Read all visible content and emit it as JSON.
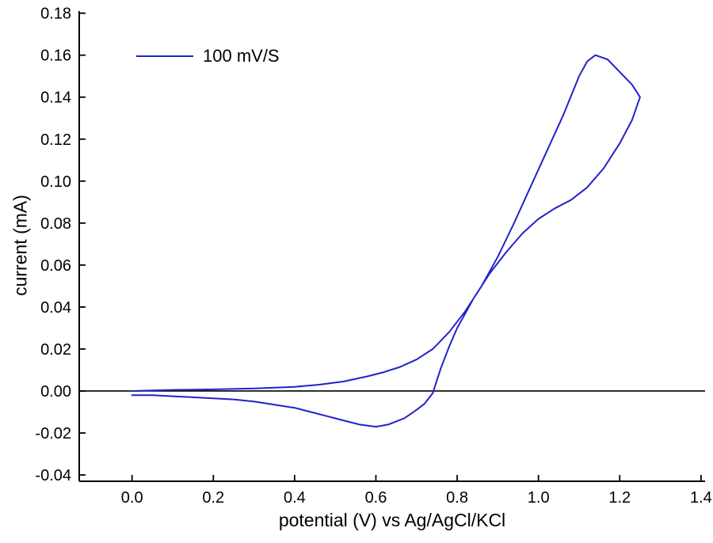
{
  "chart_data": {
    "type": "line",
    "title": "",
    "xlabel": "potential (V) vs Ag/AgCl/KCl",
    "ylabel": "current (mA)",
    "xlim": [
      -0.13,
      1.41
    ],
    "ylim": [
      -0.043,
      0.181
    ],
    "grid": false,
    "legend_position": "top-left-inside",
    "axis_color": "#000000",
    "zero_line": {
      "y": 0,
      "color": "#000000"
    },
    "x_ticks": {
      "values": [
        0.0,
        0.2,
        0.4,
        0.6,
        0.8,
        1.0,
        1.2,
        1.4
      ],
      "labels": [
        "0.0",
        "0.2",
        "0.4",
        "0.6",
        "0.8",
        "1.0",
        "1.2",
        "1.4"
      ]
    },
    "y_ticks": {
      "values": [
        -0.04,
        -0.02,
        0.0,
        0.02,
        0.04,
        0.06,
        0.08,
        0.1,
        0.12,
        0.14,
        0.16,
        0.18
      ],
      "labels": [
        "-0.04",
        "-0.02",
        "0.00",
        "0.02",
        "0.04",
        "0.06",
        "0.08",
        "0.10",
        "0.12",
        "0.14",
        "0.16",
        "0.18"
      ]
    },
    "series": [
      {
        "name": "100 mV/S",
        "color": "#2222cc",
        "loop": [
          [
            0.0,
            0.0
          ],
          [
            0.05,
            0.0003
          ],
          [
            0.1,
            0.0005
          ],
          [
            0.2,
            0.0008
          ],
          [
            0.3,
            0.0012
          ],
          [
            0.4,
            0.002
          ],
          [
            0.46,
            0.003
          ],
          [
            0.52,
            0.0045
          ],
          [
            0.58,
            0.007
          ],
          [
            0.62,
            0.009
          ],
          [
            0.66,
            0.0115
          ],
          [
            0.7,
            0.015
          ],
          [
            0.74,
            0.02
          ],
          [
            0.78,
            0.028
          ],
          [
            0.82,
            0.038
          ],
          [
            0.86,
            0.05
          ],
          [
            0.9,
            0.064
          ],
          [
            0.94,
            0.08
          ],
          [
            0.98,
            0.097
          ],
          [
            1.02,
            0.114
          ],
          [
            1.06,
            0.131
          ],
          [
            1.1,
            0.15
          ],
          [
            1.12,
            0.157
          ],
          [
            1.14,
            0.16
          ],
          [
            1.17,
            0.158
          ],
          [
            1.2,
            0.152
          ],
          [
            1.23,
            0.146
          ],
          [
            1.25,
            0.14
          ],
          [
            1.23,
            0.129
          ],
          [
            1.2,
            0.118
          ],
          [
            1.16,
            0.106
          ],
          [
            1.12,
            0.097
          ],
          [
            1.08,
            0.091
          ],
          [
            1.04,
            0.087
          ],
          [
            1.0,
            0.082
          ],
          [
            0.96,
            0.075
          ],
          [
            0.92,
            0.066
          ],
          [
            0.88,
            0.056
          ],
          [
            0.84,
            0.044
          ],
          [
            0.8,
            0.03
          ],
          [
            0.78,
            0.021
          ],
          [
            0.76,
            0.011
          ],
          [
            0.75,
            0.005
          ],
          [
            0.74,
            -0.001
          ],
          [
            0.72,
            -0.006
          ],
          [
            0.7,
            -0.009
          ],
          [
            0.67,
            -0.013
          ],
          [
            0.63,
            -0.016
          ],
          [
            0.6,
            -0.017
          ],
          [
            0.56,
            -0.016
          ],
          [
            0.52,
            -0.014
          ],
          [
            0.48,
            -0.012
          ],
          [
            0.44,
            -0.01
          ],
          [
            0.4,
            -0.008
          ],
          [
            0.35,
            -0.0065
          ],
          [
            0.3,
            -0.005
          ],
          [
            0.25,
            -0.004
          ],
          [
            0.2,
            -0.0035
          ],
          [
            0.15,
            -0.003
          ],
          [
            0.1,
            -0.0025
          ],
          [
            0.05,
            -0.002
          ],
          [
            0.0,
            -0.002
          ]
        ]
      }
    ]
  }
}
